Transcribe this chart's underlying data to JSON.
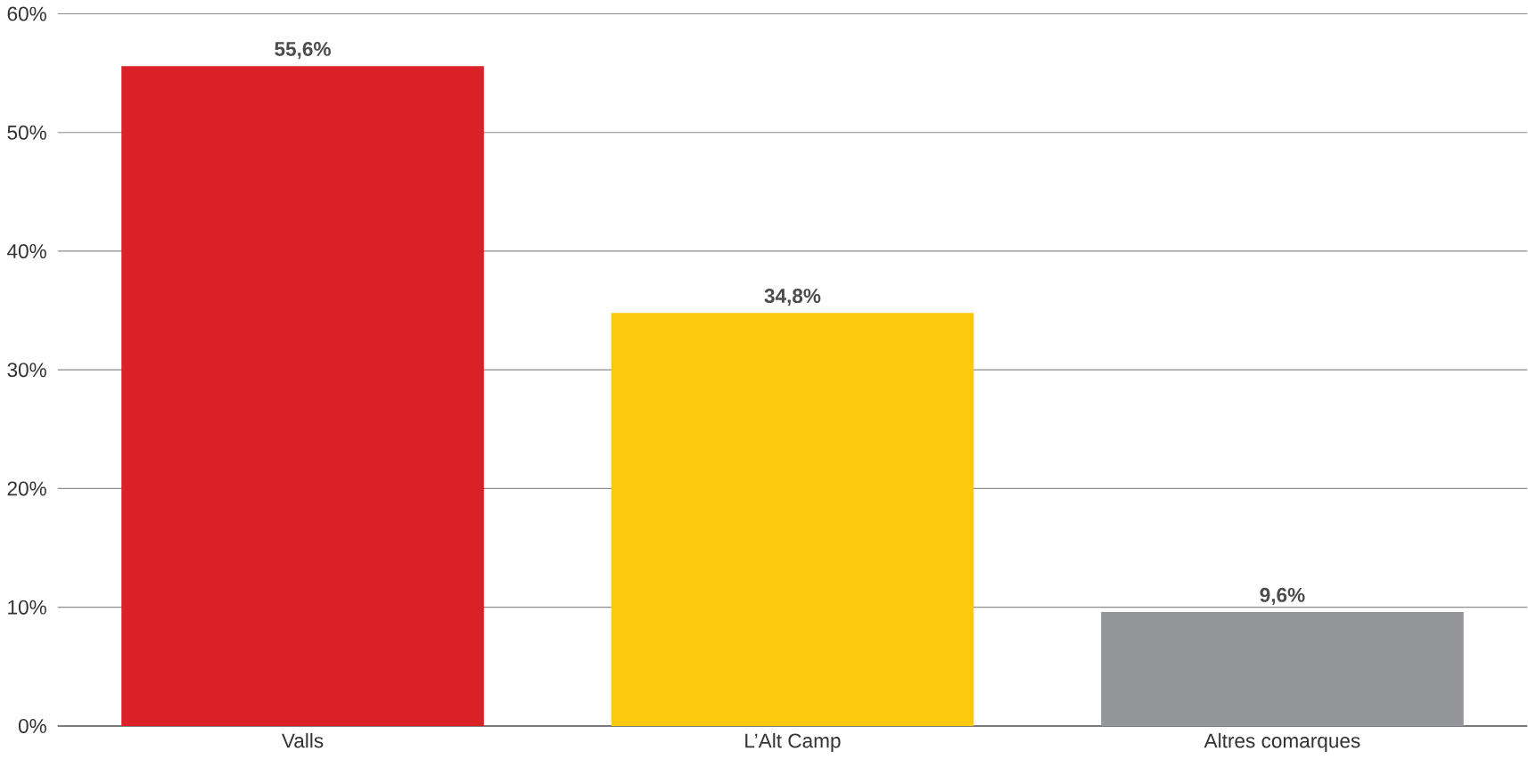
{
  "chart_data": {
    "type": "bar",
    "categories": [
      "Valls",
      "L’Alt Camp",
      "Altres comarques"
    ],
    "values": [
      55.6,
      34.8,
      9.6
    ],
    "colors": [
      "#da2128",
      "#fdc90c",
      "#939598"
    ],
    "value_labels": [
      "55,6%",
      "34,8%",
      "9,6%"
    ],
    "ylim": [
      0,
      60
    ],
    "yticks": [
      {
        "value": 0,
        "label": "0%"
      },
      {
        "value": 10,
        "label": "10%"
      },
      {
        "value": 20,
        "label": "20%"
      },
      {
        "value": 30,
        "label": "30%"
      },
      {
        "value": 40,
        "label": "40%"
      },
      {
        "value": 50,
        "label": "50%"
      },
      {
        "value": 60,
        "label": "60%"
      }
    ],
    "grid": "y"
  }
}
